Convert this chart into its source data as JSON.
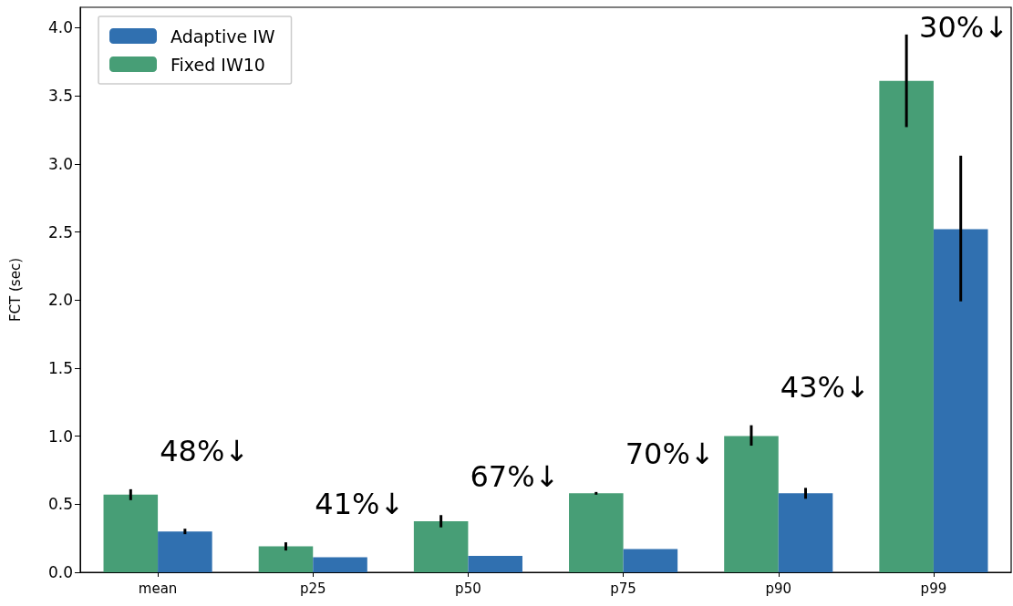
{
  "chart_data": {
    "type": "bar",
    "ylabel": "FCT (sec)",
    "categories": [
      "mean",
      "p25",
      "p50",
      "p75",
      "p90",
      "p99"
    ],
    "series": [
      {
        "name": "Fixed IW10",
        "color": "#479e76",
        "values": [
          0.57,
          0.19,
          0.375,
          0.58,
          1.0,
          3.61
        ],
        "errors": [
          [
            0.53,
            0.61
          ],
          [
            0.16,
            0.22
          ],
          [
            0.33,
            0.42
          ],
          [
            0.57,
            0.59
          ],
          [
            0.93,
            1.08
          ],
          [
            3.27,
            3.95
          ]
        ]
      },
      {
        "name": "Adaptive IW",
        "color": "#3070b0",
        "values": [
          0.3,
          0.11,
          0.12,
          0.17,
          0.58,
          2.52
        ],
        "errors": [
          [
            0.28,
            0.32
          ],
          null,
          null,
          null,
          [
            0.54,
            0.62
          ],
          [
            1.99,
            3.06
          ]
        ]
      }
    ],
    "ylim": [
      0,
      4.15
    ],
    "yticks": [
      {
        "value": 0,
        "label": "0.0"
      },
      {
        "value": 0.5,
        "label": "0.5"
      },
      {
        "value": 1,
        "label": "1.0"
      },
      {
        "value": 1.5,
        "label": "1.5"
      },
      {
        "value": 2,
        "label": "2.0"
      },
      {
        "value": 2.5,
        "label": "2.5"
      },
      {
        "value": 3,
        "label": "3.0"
      },
      {
        "value": 3.5,
        "label": "3.5"
      },
      {
        "value": 4,
        "label": "4.0"
      }
    ],
    "annotations": [
      "48%↓",
      "41%↓",
      "67%↓",
      "70%↓",
      "43%↓",
      "30%↓"
    ],
    "legend": "top left",
    "grid": false
  }
}
